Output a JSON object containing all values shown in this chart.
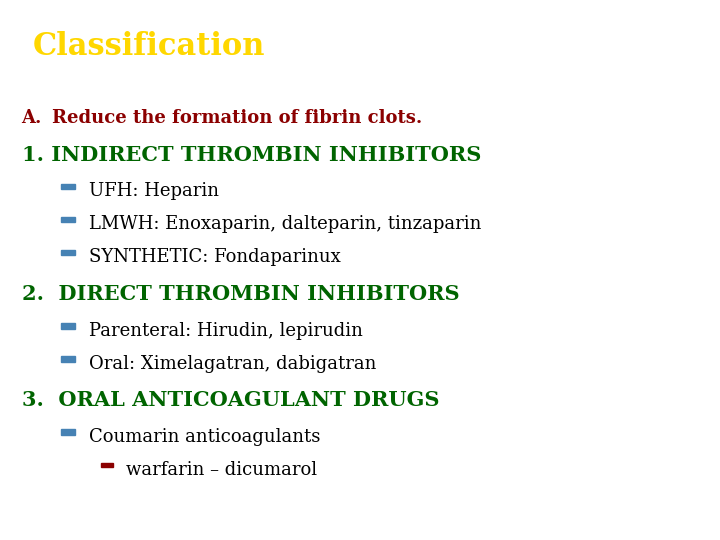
{
  "title": "Classification",
  "title_color": "#FFD700",
  "title_bg_color": "#000000",
  "title_fontsize": 22,
  "body_bg_color": "#FFFFFF",
  "section_A_label_color": "#8B0000",
  "section_A_fontsize": 13,
  "heading_fontsize": 15,
  "heading1_text": "1. INDIRECT THROMBIN INHIBITORS",
  "heading1_color": "#006400",
  "bullet1_items": [
    "UFH: Heparin",
    "LMWH: Enoxaparin, dalteparin, tinzaparin",
    "SYNTHETIC: Fondaparinux"
  ],
  "bullet_color": "#000000",
  "bullet_square_color": "#4682B4",
  "bullet_fontsize": 13,
  "heading2_text": "2.  DIRECT THROMBIN INHIBITORS",
  "heading2_color": "#006400",
  "bullet2_items": [
    "Parenteral: Hirudin, lepirudin",
    "Oral: Ximelagatran, dabigatran"
  ],
  "heading3_text": "3.  ORAL ANTICOAGULANT DRUGS",
  "heading3_color": "#006400",
  "bullet3_items": [
    "Coumarin anticoagulants"
  ],
  "sub_bullet3_items": [
    "warfarin – dicumarol"
  ],
  "sub_bullet3_square_color": "#8B0000",
  "figsize": [
    7.2,
    5.4
  ],
  "dpi": 100
}
